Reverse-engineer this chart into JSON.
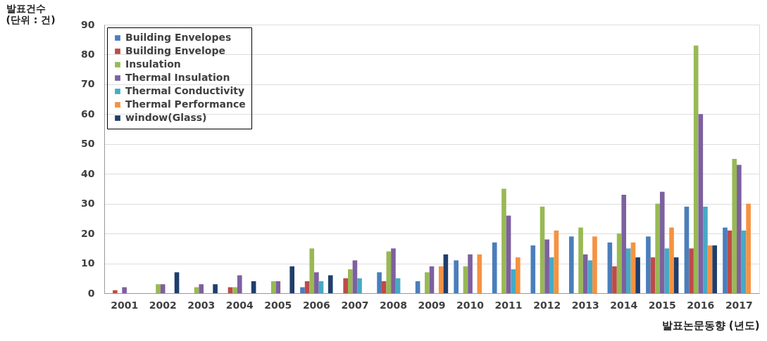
{
  "chart_data": {
    "type": "bar",
    "ylabel": "발표건수\n(단위 : 건)",
    "xlabel": "발표논문동향 (년도)",
    "categories": [
      "2001",
      "2002",
      "2003",
      "2004",
      "2005",
      "2006",
      "2007",
      "2008",
      "2009",
      "2010",
      "2011",
      "2012",
      "2013",
      "2014",
      "2015",
      "2016",
      "2017"
    ],
    "series": [
      {
        "name": "Building Envelopes",
        "color": "#4a7ebb",
        "values": [
          null,
          null,
          null,
          null,
          null,
          2,
          null,
          7,
          4,
          11,
          17,
          16,
          19,
          17,
          19,
          29,
          22
        ]
      },
      {
        "name": "Building Envelope",
        "color": "#be4b48",
        "values": [
          1,
          null,
          null,
          2,
          null,
          4,
          5,
          4,
          null,
          null,
          null,
          null,
          null,
          9,
          12,
          15,
          21
        ]
      },
      {
        "name": "Insulation",
        "color": "#98b954",
        "values": [
          null,
          3,
          2,
          2,
          4,
          15,
          8,
          14,
          7,
          9,
          35,
          29,
          22,
          20,
          30,
          83,
          45
        ]
      },
      {
        "name": "Thermal Insulation",
        "color": "#7d60a0",
        "values": [
          2,
          3,
          3,
          6,
          4,
          7,
          11,
          15,
          9,
          13,
          26,
          18,
          13,
          33,
          34,
          60,
          43
        ]
      },
      {
        "name": "Thermal Conductivity",
        "color": "#46aac5",
        "values": [
          null,
          null,
          null,
          null,
          null,
          4,
          5,
          5,
          null,
          null,
          8,
          12,
          11,
          15,
          15,
          29,
          21
        ]
      },
      {
        "name": "Thermal Performance",
        "color": "#f69240",
        "values": [
          null,
          null,
          null,
          null,
          null,
          null,
          null,
          null,
          9,
          13,
          12,
          21,
          19,
          17,
          22,
          16,
          30
        ]
      },
      {
        "name": "window(Glass)",
        "color": "#1f3e6c",
        "values": [
          null,
          7,
          3,
          4,
          9,
          6,
          null,
          null,
          13,
          null,
          null,
          null,
          null,
          12,
          12,
          16,
          null
        ]
      }
    ],
    "ylim": [
      0,
      90
    ],
    "yticks": [
      0,
      10,
      20,
      30,
      40,
      50,
      60,
      70,
      80,
      90
    ],
    "grid": "y",
    "legend": "top left"
  }
}
